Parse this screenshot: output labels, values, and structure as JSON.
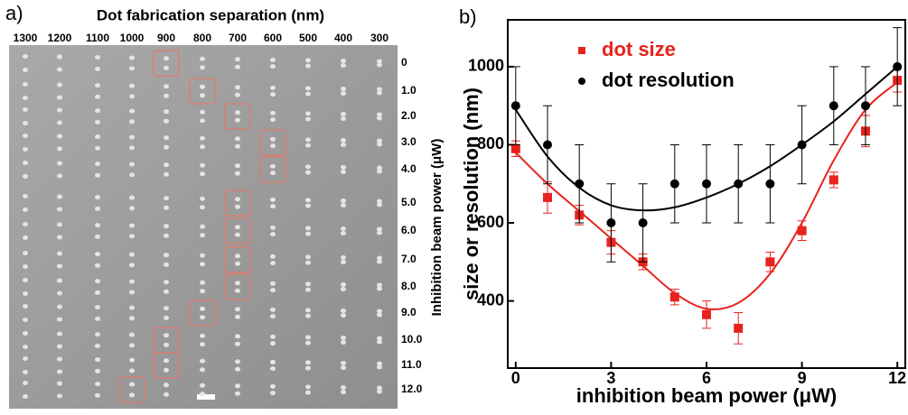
{
  "panel_a": {
    "label": "a)",
    "title": "Dot fabrication separation (nm)",
    "columns": [
      "1300",
      "1200",
      "1100",
      "1000",
      "900",
      "800",
      "700",
      "600",
      "500",
      "400",
      "300"
    ],
    "rows": [
      "0",
      "1.0",
      "2.0",
      "3.0",
      "4.0",
      "5.0",
      "6.0",
      "7.0",
      "8.0",
      "9.0",
      "10.0",
      "11.0",
      "12.0"
    ],
    "row_axis_label": "Inhibition beam power  (μW)"
  },
  "chart_data": {
    "type": "scatter",
    "label": "b)",
    "x_label": "inhibition beam power (μW)",
    "y_label": "size or resolution (nm)",
    "x": [
      0,
      1,
      2,
      3,
      4,
      5,
      6,
      7,
      8,
      9,
      10,
      11,
      12
    ],
    "xlim": [
      -0.25,
      12.25
    ],
    "xticks": [
      0,
      3,
      6,
      9,
      12
    ],
    "ylim": [
      228,
      1120
    ],
    "yticks": [
      400,
      600,
      800,
      1000
    ],
    "legend": "upper left",
    "series": [
      {
        "name": "dot size",
        "color": "#e8221c",
        "marker": "square",
        "values": [
          790,
          665,
          620,
          550,
          500,
          410,
          365,
          330,
          500,
          580,
          710,
          835,
          965
        ],
        "errors": [
          20,
          40,
          25,
          30,
          20,
          20,
          35,
          40,
          25,
          25,
          20,
          40,
          30
        ],
        "fit": [
          780,
          700,
          630,
          560,
          490,
          420,
          380,
          395,
          470,
          600,
          760,
          890,
          960
        ]
      },
      {
        "name": "dot resolution",
        "color": "#000000",
        "marker": "circle",
        "values": [
          900,
          800,
          700,
          600,
          600,
          700,
          700,
          700,
          700,
          800,
          900,
          900,
          1000
        ],
        "errors": [
          100,
          100,
          100,
          100,
          100,
          100,
          100,
          100,
          100,
          100,
          100,
          100,
          100
        ],
        "fit": [
          890,
          770,
          690,
          645,
          632,
          640,
          665,
          700,
          745,
          800,
          860,
          930,
          1000
        ]
      }
    ]
  }
}
